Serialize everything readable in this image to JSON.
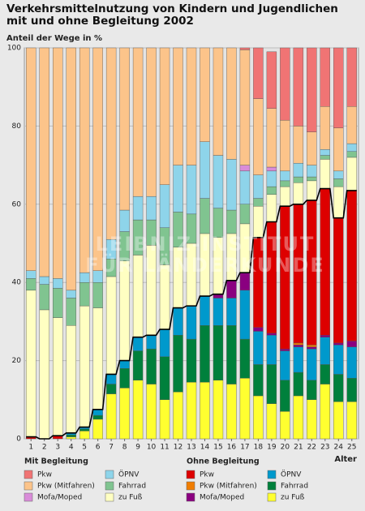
{
  "chart_data": {
    "type": "stacked_bar",
    "title": "Verkehrsmittelnutzung von Kindern und Jugendlichen mit und ohne Begleitung 2002",
    "y_label": "Anteil der Wege in %",
    "x_label": "Alter",
    "watermark": [
      "LEIBNIZ-INSTITUT",
      "FÜR LÄNDERKUNDE"
    ],
    "categories": [
      "1",
      "2",
      "3",
      "4",
      "5",
      "6",
      "7",
      "8",
      "9",
      "10",
      "11",
      "12",
      "13",
      "14",
      "15",
      "16",
      "17",
      "18",
      "19",
      "20",
      "21",
      "22",
      "23",
      "24",
      "25"
    ],
    "ylim": [
      0,
      100
    ],
    "yticks": [
      0,
      20,
      40,
      60,
      80,
      100
    ],
    "grid": true,
    "series_groups": [
      {
        "name": "Mit Begleitung",
        "series": [
          {
            "name": "zu Fuß",
            "color": "#ffffc2",
            "values": [
              37.5,
              33,
              30.2,
              27.5,
              31,
              26,
              25,
              25.5,
              21,
              23,
              16.5,
              15.5,
              16,
              16,
              14.5,
              12,
              12.5,
              8,
              7,
              5,
              5.5,
              5,
              7.5,
              8,
              8.5
            ]
          },
          {
            "name": "Fahrrad",
            "color": "#80c490",
            "values": [
              3,
              6.5,
              7.5,
              7,
              6,
              6.5,
              4.5,
              7.5,
              9,
              6.5,
              9.5,
              9,
              7.5,
              9,
              7.5,
              6,
              5,
              2,
              2,
              1.5,
              1.5,
              1,
              1,
              2,
              1.5
            ]
          },
          {
            "name": "ÖPNV",
            "color": "#8ed4ea",
            "values": [
              2,
              2,
              2.5,
              2,
              2.5,
              3,
              5,
              5.5,
              6,
              6,
              11,
              12,
              12.5,
              14.5,
              13.5,
              13,
              8.5,
              6,
              4,
              2.5,
              3.5,
              3,
              1.5,
              2,
              2
            ]
          },
          {
            "name": "Mofa/Moped",
            "color": "#d98cd9",
            "values": [
              0,
              0,
              0,
              0,
              0,
              0,
              0,
              0,
              0,
              0,
              0,
              0,
              0,
              0,
              0,
              0,
              1.5,
              0,
              1,
              0,
              0,
              0,
              0,
              0,
              0
            ]
          },
          {
            "name": "Pkw (Mitfahren)",
            "color": "#fcc48a",
            "values": [
              57,
              58.5,
              59,
              62,
              57.5,
              57,
              49,
              41.5,
              38,
              38,
              35,
              30,
              30,
              24,
              27.5,
              28.5,
              29.5,
              19.5,
              15,
              13,
              9.5,
              8.5,
              11,
              11,
              9.5
            ]
          },
          {
            "name": "Pkw",
            "color": "#f07474",
            "values": [
              0,
              0,
              0,
              0,
              0,
              0,
              0,
              0,
              0,
              0,
              0,
              0,
              0,
              0,
              0,
              0,
              0.5,
              13,
              14.5,
              18.5,
              20,
              21.5,
              15,
              20.5,
              15
            ]
          }
        ]
      },
      {
        "name": "Ohne Begleitung",
        "series": [
          {
            "name": "zu Fuß",
            "color": "#ffff30",
            "values": [
              0,
              0,
              0,
              0.5,
              2,
              5,
              11.5,
              13,
              15,
              14,
              10,
              12,
              14.5,
              14.5,
              15,
              14,
              15.5,
              11,
              9,
              7,
              11,
              10,
              14,
              9.5,
              9.5
            ]
          },
          {
            "name": "Fahrrad",
            "color": "#00803c",
            "values": [
              0,
              0,
              0,
              0.5,
              0.5,
              1,
              2.5,
              5,
              7.5,
              9,
              11,
              14.5,
              11,
              14.5,
              14,
              15,
              10,
              8,
              10,
              8,
              6,
              5,
              5,
              7,
              6
            ]
          },
          {
            "name": "ÖPNV",
            "color": "#0099cc",
            "values": [
              0,
              0,
              0,
              0.5,
              0.5,
              1.5,
              2.5,
              2,
              3.5,
              3.5,
              7,
              7,
              8.5,
              7.5,
              7,
              7,
              12.5,
              8.5,
              7.5,
              7.5,
              6.5,
              8,
              7,
              7.5,
              8
            ]
          },
          {
            "name": "Mofa/Moped",
            "color": "#8a0080",
            "values": [
              0,
              0,
              0,
              0,
              0,
              0,
              0,
              0,
              0,
              0,
              0,
              0,
              0,
              0,
              1,
              4.5,
              4.5,
              1,
              0.5,
              0.5,
              0.5,
              0.5,
              0.5,
              0.5,
              1.5
            ]
          },
          {
            "name": "Pkw (Mitfahren)",
            "color": "#f07d00",
            "values": [
              0,
              0,
              0,
              0,
              0,
              0,
              0,
              0,
              0,
              0,
              0,
              0,
              0,
              0,
              0,
              0,
              0,
              0,
              0,
              0,
              0.5,
              0.5,
              0,
              0,
              0
            ]
          },
          {
            "name": "Pkw",
            "color": "#dd0000",
            "values": [
              0.5,
              0,
              0.8,
              0,
              0,
              0,
              0,
              0,
              0,
              0,
              0,
              0,
              0,
              0,
              0,
              0,
              0,
              23,
              28.5,
              36.5,
              35.5,
              37,
              37.5,
              32,
              38.5
            ]
          }
        ]
      }
    ]
  }
}
